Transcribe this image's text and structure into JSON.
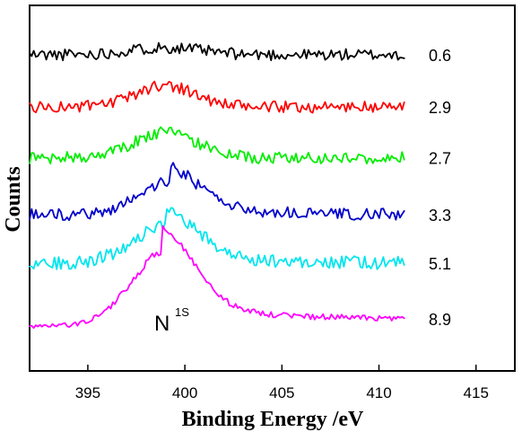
{
  "chart_data": {
    "type": "line",
    "title": "",
    "xlabel": "Binding Energy /eV",
    "ylabel": "Counts",
    "xlim": [
      392,
      417
    ],
    "ylim": [
      0,
      1
    ],
    "grid": false,
    "x_ticks": [
      395,
      400,
      405,
      410,
      415
    ],
    "y_ticks_shown": false,
    "x_range": [
      392,
      411.3
    ],
    "annotation": {
      "main": "N",
      "sup": "1S"
    },
    "series": [
      {
        "label": "0.6",
        "color": "#000000",
        "baseline": 0.865,
        "peak_center": 399.0,
        "peak_width": 1.8,
        "peak_height": 0.02,
        "tail": 0.0,
        "noise": 0.016,
        "seed": 11
      },
      {
        "label": "2.9",
        "color": "#ff0000",
        "baseline": 0.722,
        "peak_center": 399.0,
        "peak_width": 1.5,
        "peak_height": 0.06,
        "tail": 0.0,
        "noise": 0.016,
        "seed": 23
      },
      {
        "label": "2.7",
        "color": "#00ee00",
        "baseline": 0.583,
        "peak_center": 399.0,
        "peak_width": 1.6,
        "peak_height": 0.07,
        "tail": 0.0,
        "noise": 0.016,
        "seed": 37
      },
      {
        "label": "3.3",
        "color": "#0000cc",
        "baseline": 0.427,
        "peak_center": 399.2,
        "peak_width": 1.6,
        "peak_height": 0.09,
        "tail": 0.04,
        "noise": 0.016,
        "seed": 41
      },
      {
        "label": "5.1",
        "color": "#00e5ee",
        "baseline": 0.295,
        "peak_center": 399.0,
        "peak_width": 1.7,
        "peak_height": 0.1,
        "tail": 0.04,
        "noise": 0.018,
        "seed": 53
      },
      {
        "label": "8.9",
        "color": "#ff00ff",
        "baseline": 0.143,
        "peak_center": 398.8,
        "peak_width": 1.7,
        "peak_height": 0.18,
        "tail": 0.07,
        "noise": 0.008,
        "seed": 67
      }
    ]
  }
}
